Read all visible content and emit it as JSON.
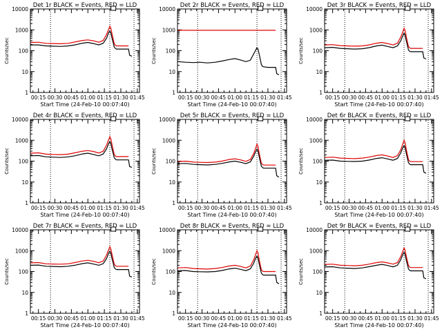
{
  "chart_data": {
    "type": "line",
    "y_scale": "log",
    "ylim": [
      1,
      10000
    ],
    "y_ticks": [
      1,
      10,
      100,
      1000,
      10000
    ],
    "y_tick_labels": [
      "1",
      "10",
      "100",
      "1000",
      "10000"
    ],
    "ylabel": "Counts/sec",
    "xlabel": "Start Time (24-Feb-10 00:07:40)",
    "x_ticks": [
      "00:15",
      "00:30",
      "00:45",
      "01:00",
      "01:15",
      "01:30",
      "01:45"
    ],
    "x_tick_minutes": [
      15,
      30,
      45,
      60,
      75,
      90,
      105
    ],
    "xlim_minutes": [
      7.67,
      107
    ],
    "dotted_lines_minutes": [
      26,
      80,
      102
    ],
    "marker_minute": 81,
    "series_colors": {
      "events": "#000000",
      "lld": "#e00000"
    },
    "time_minutes": [
      8,
      15,
      22,
      28,
      35,
      42,
      48,
      55,
      60,
      65,
      70,
      74,
      77,
      79,
      80,
      81,
      82,
      83,
      84,
      85,
      86,
      90,
      94,
      97,
      98,
      100
    ],
    "panels": [
      {
        "title": "Det 1r BLACK = Events, RED = LLD",
        "events": [
          190,
          190,
          170,
          165,
          160,
          170,
          190,
          230,
          250,
          220,
          190,
          230,
          400,
          750,
          900,
          700,
          400,
          250,
          150,
          130,
          120,
          120,
          120,
          120,
          60,
          55
        ],
        "lld": [
          250,
          255,
          225,
          220,
          215,
          225,
          260,
          310,
          330,
          300,
          255,
          310,
          600,
          1100,
          1500,
          1200,
          650,
          380,
          220,
          180,
          170,
          170,
          170,
          170,
          null,
          null
        ]
      },
      {
        "title": "Det 2r BLACK = Events, RED = LLD",
        "events": [
          30,
          28,
          27,
          28,
          26,
          28,
          32,
          38,
          42,
          36,
          30,
          35,
          70,
          110,
          140,
          120,
          70,
          40,
          22,
          18,
          17,
          16,
          16,
          16,
          8,
          7
        ],
        "lld": [
          950,
          950,
          950,
          950,
          950,
          950,
          950,
          950,
          950,
          950,
          950,
          950,
          950,
          950,
          950,
          950,
          950,
          950,
          950,
          950,
          950,
          950,
          950,
          950,
          null,
          null
        ]
      },
      {
        "title": "Det 3r BLACK = Events, RED = LLD",
        "events": [
          140,
          145,
          130,
          125,
          120,
          125,
          140,
          170,
          185,
          160,
          140,
          170,
          300,
          550,
          700,
          550,
          300,
          190,
          110,
          95,
          90,
          90,
          90,
          90,
          45,
          40
        ],
        "lld": [
          190,
          195,
          175,
          170,
          165,
          170,
          190,
          230,
          250,
          220,
          190,
          230,
          450,
          850,
          1200,
          950,
          480,
          280,
          160,
          140,
          130,
          130,
          130,
          130,
          null,
          null
        ]
      },
      {
        "title": "Det 4r BLACK = Events, RED = LLD",
        "events": [
          180,
          185,
          160,
          155,
          150,
          160,
          180,
          220,
          240,
          210,
          180,
          220,
          390,
          720,
          880,
          680,
          380,
          240,
          145,
          125,
          115,
          115,
          115,
          115,
          55,
          50
        ],
        "lld": [
          240,
          250,
          215,
          210,
          205,
          215,
          250,
          300,
          320,
          290,
          245,
          300,
          580,
          1100,
          1500,
          1150,
          620,
          360,
          210,
          175,
          165,
          165,
          165,
          165,
          null,
          null
        ]
      },
      {
        "title": "Det 5r BLACK = Events, RED = LLD",
        "events": [
          75,
          78,
          70,
          68,
          66,
          70,
          78,
          92,
          100,
          88,
          76,
          92,
          170,
          300,
          380,
          300,
          170,
          100,
          58,
          50,
          46,
          46,
          46,
          46,
          20,
          17
        ],
        "lld": [
          95,
          100,
          90,
          88,
          86,
          90,
          100,
          120,
          130,
          115,
          98,
          120,
          230,
          450,
          650,
          500,
          250,
          140,
          80,
          70,
          65,
          65,
          65,
          65,
          null,
          null
        ]
      },
      {
        "title": "Det 6r BLACK = Events, RED = LLD",
        "events": [
          110,
          112,
          100,
          98,
          96,
          100,
          112,
          135,
          145,
          128,
          110,
          135,
          250,
          460,
          560,
          440,
          240,
          145,
          85,
          72,
          68,
          68,
          68,
          68,
          30,
          26
        ],
        "lld": [
          150,
          155,
          140,
          136,
          132,
          140,
          155,
          185,
          200,
          175,
          150,
          185,
          350,
          700,
          1000,
          760,
          380,
          210,
          120,
          100,
          95,
          95,
          95,
          95,
          null,
          null
        ]
      },
      {
        "title": "Det 7r BLACK = Events, RED = LLD",
        "events": [
          200,
          205,
          180,
          175,
          170,
          180,
          200,
          240,
          260,
          230,
          200,
          240,
          420,
          780,
          950,
          740,
          410,
          260,
          155,
          135,
          125,
          125,
          125,
          125,
          60,
          55
        ],
        "lld": [
          260,
          270,
          235,
          230,
          225,
          235,
          270,
          320,
          345,
          310,
          265,
          320,
          620,
          1150,
          1550,
          1200,
          660,
          390,
          230,
          190,
          180,
          180,
          180,
          180,
          null,
          null
        ]
      },
      {
        "title": "Det 8r BLACK = Events, RED = LLD",
        "events": [
          110,
          112,
          100,
          98,
          96,
          100,
          112,
          135,
          145,
          128,
          110,
          135,
          250,
          460,
          560,
          440,
          240,
          145,
          85,
          72,
          68,
          68,
          68,
          68,
          30,
          26
        ],
        "lld": [
          150,
          155,
          140,
          136,
          132,
          140,
          155,
          185,
          200,
          175,
          150,
          185,
          360,
          720,
          1000,
          780,
          390,
          215,
          125,
          105,
          100,
          100,
          100,
          100,
          null,
          null
        ]
      },
      {
        "title": "Det 9r BLACK = Events, RED = LLD",
        "events": [
          165,
          170,
          150,
          145,
          140,
          150,
          170,
          200,
          220,
          195,
          168,
          200,
          370,
          680,
          830,
          650,
          360,
          225,
          135,
          115,
          108,
          108,
          108,
          108,
          50,
          45
        ],
        "lld": [
          220,
          225,
          200,
          195,
          190,
          200,
          225,
          270,
          290,
          260,
          225,
          270,
          520,
          1000,
          1350,
          1050,
          560,
          330,
          195,
          165,
          155,
          155,
          155,
          155,
          null,
          null
        ]
      }
    ]
  }
}
